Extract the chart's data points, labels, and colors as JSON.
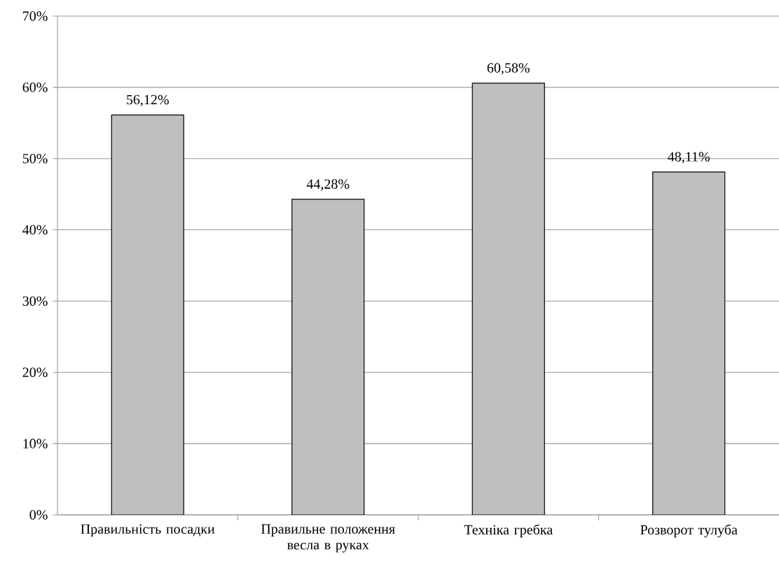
{
  "chart_data": {
    "type": "bar",
    "categories": [
      "Правильність посадки",
      "Правильне положення весла в руках",
      "Техніка гребка",
      "Розворот тулуба"
    ],
    "values": [
      56.12,
      44.28,
      60.58,
      48.11
    ],
    "value_labels": [
      "56,12%",
      "44,28%",
      "60,58%",
      "48,11%"
    ],
    "color": "#bfbfbf",
    "ylim": [
      0,
      70
    ],
    "yticks": [
      {
        "value": 0,
        "label": "0%"
      },
      {
        "value": 10,
        "label": "10%"
      },
      {
        "value": 20,
        "label": "20%"
      },
      {
        "value": 30,
        "label": "30%"
      },
      {
        "value": 40,
        "label": "40%"
      },
      {
        "value": 50,
        "label": "50%"
      },
      {
        "value": 60,
        "label": "60%"
      },
      {
        "value": 70,
        "label": "70%"
      }
    ],
    "grid": "y"
  }
}
